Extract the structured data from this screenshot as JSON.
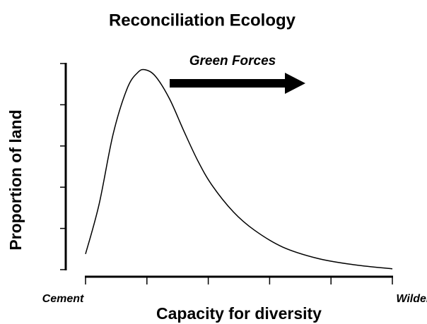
{
  "chart_data": {
    "type": "line",
    "title": "Reconciliation Ecology",
    "xlabel": "Capacity for diversity",
    "ylabel": "Proportion of land",
    "x": [
      0,
      0.22,
      0.45,
      0.68,
      0.85,
      0.97,
      1.14,
      1.37,
      1.6,
      1.83,
      2.06,
      2.41,
      2.75,
      3.21,
      3.79,
      4.37,
      5
    ],
    "values": [
      0.38,
      1.58,
      3.29,
      4.4,
      4.78,
      4.85,
      4.69,
      4.14,
      3.37,
      2.64,
      2.05,
      1.4,
      0.96,
      0.55,
      0.27,
      0.12,
      0.02
    ],
    "color": "#000000",
    "xlim": [
      0,
      5
    ],
    "xticks": [
      0,
      1,
      2,
      3,
      4,
      5
    ],
    "ylim": [
      0,
      5
    ],
    "yticks": [
      0,
      1,
      2,
      3,
      4,
      5
    ],
    "tick_labels_shown": false,
    "x_end_labels": [
      {
        "x": 0,
        "text": "Cement"
      },
      {
        "x": 5,
        "text": "Wilderness"
      }
    ],
    "annotation": "Green Forces"
  }
}
